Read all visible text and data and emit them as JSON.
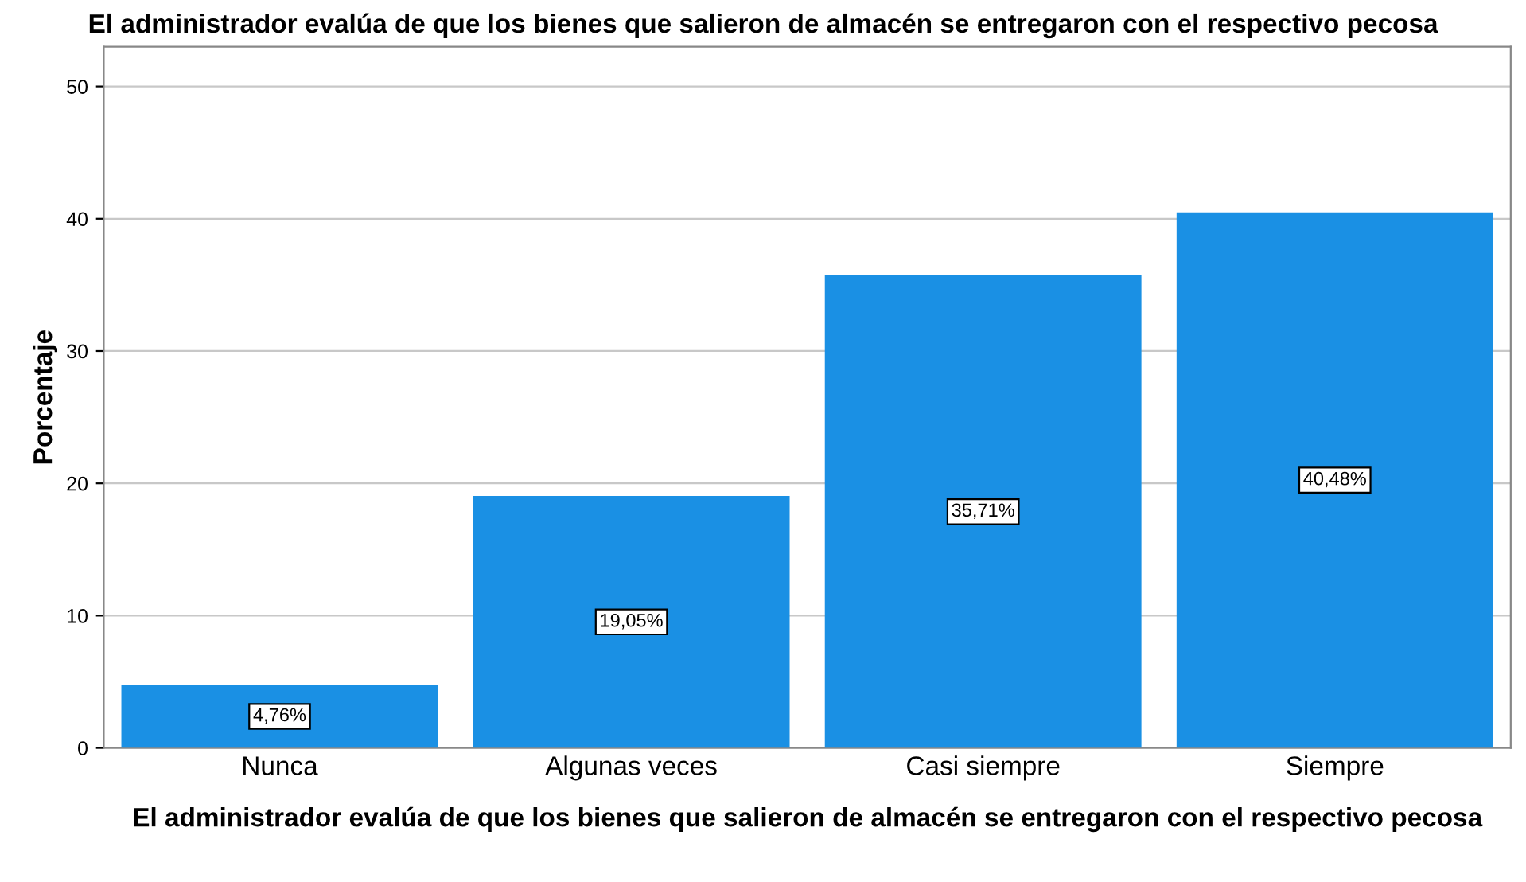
{
  "chart_data": {
    "type": "bar",
    "title": "El administrador evalúa de que los bienes que salieron de almacén se entregaron con el respectivo pecosa",
    "xlabel": "El administrador evalúa de que los bienes que salieron de almacén se entregaron con el respectivo pecosa",
    "ylabel": "Porcentaje",
    "categories": [
      "Nunca",
      "Algunas veces",
      "Casi siempre",
      "Siempre"
    ],
    "values": [
      4.76,
      19.05,
      35.71,
      40.48
    ],
    "value_labels": [
      "4,76%",
      "19,05%",
      "35,71%",
      "40,48%"
    ],
    "color": "#1a90e4",
    "ylim": [
      0,
      53
    ],
    "yticks": [
      0,
      10,
      20,
      30,
      40,
      50
    ],
    "grid": "y",
    "legend": false
  }
}
